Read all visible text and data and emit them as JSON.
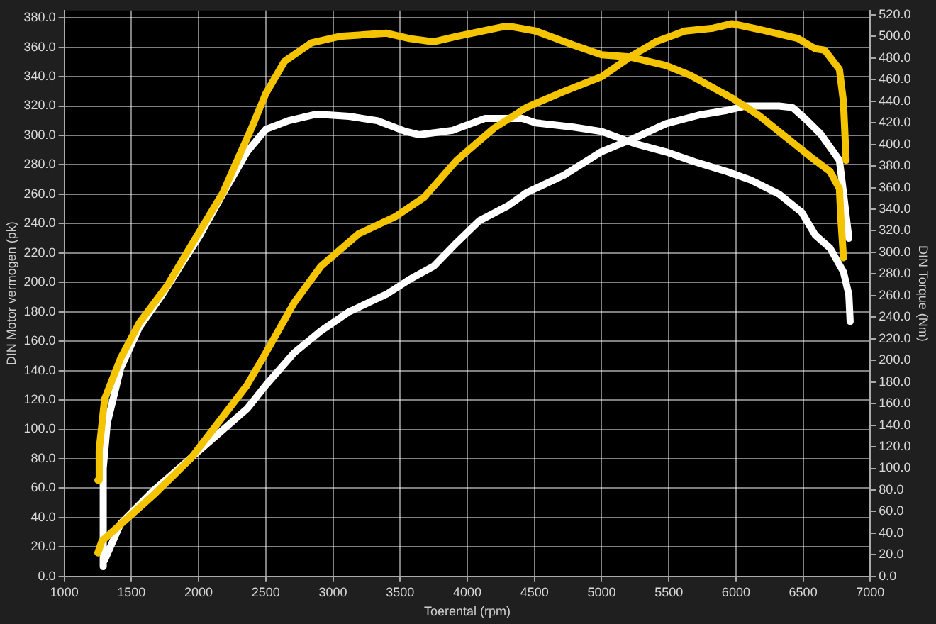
{
  "chart_data": {
    "type": "line",
    "xlabel": "Toerental (rpm)",
    "ylabel": "DIN Motor vermogen (pk)",
    "y2label": "DIN Torque (Nm)",
    "xlim": [
      1000,
      7000
    ],
    "xticks": [
      1000,
      1500,
      2000,
      2500,
      3000,
      3500,
      4000,
      4500,
      5000,
      5500,
      6000,
      6500,
      7000
    ],
    "ylim": [
      0,
      385
    ],
    "yticks": [
      {
        "value": 0,
        "label": "0.0"
      },
      {
        "value": 20,
        "label": "20.0"
      },
      {
        "value": 40,
        "label": "40.0"
      },
      {
        "value": 60,
        "label": "60.0"
      },
      {
        "value": 80,
        "label": "80.0"
      },
      {
        "value": 100,
        "label": "100.0"
      },
      {
        "value": 120,
        "label": "120.0"
      },
      {
        "value": 140,
        "label": "140.0"
      },
      {
        "value": 160,
        "label": "160.0"
      },
      {
        "value": 180,
        "label": "180.0"
      },
      {
        "value": 200,
        "label": "200.0"
      },
      {
        "value": 220,
        "label": "220.0"
      },
      {
        "value": 240,
        "label": "240.0"
      },
      {
        "value": 260,
        "label": "260.0"
      },
      {
        "value": 280,
        "label": "280.0"
      },
      {
        "value": 300,
        "label": "300.0"
      },
      {
        "value": 320,
        "label": "320.0"
      },
      {
        "value": 340,
        "label": "340.0"
      },
      {
        "value": 360,
        "label": "360.0"
      },
      {
        "value": 380,
        "label": "380.0"
      }
    ],
    "y2lim": [
      0,
      524
    ],
    "y2ticks": [
      {
        "value": 0,
        "label": "0.0"
      },
      {
        "value": 20,
        "label": "20.0"
      },
      {
        "value": 40,
        "label": "40.0"
      },
      {
        "value": 60,
        "label": "60.0"
      },
      {
        "value": 80,
        "label": "80.0"
      },
      {
        "value": 100,
        "label": "100.0"
      },
      {
        "value": 120,
        "label": "120.0"
      },
      {
        "value": 140,
        "label": "140.0"
      },
      {
        "value": 160,
        "label": "160.0"
      },
      {
        "value": 180,
        "label": "180.0"
      },
      {
        "value": 200,
        "label": "200.0"
      },
      {
        "value": 220,
        "label": "220.0"
      },
      {
        "value": 240,
        "label": "240.0"
      },
      {
        "value": 260,
        "label": "260.0"
      },
      {
        "value": 280,
        "label": "280.0"
      },
      {
        "value": 300,
        "label": "300.0"
      },
      {
        "value": 320,
        "label": "320.0"
      },
      {
        "value": 340,
        "label": "340.0"
      },
      {
        "value": 360,
        "label": "360.0"
      },
      {
        "value": 380,
        "label": "380.0"
      },
      {
        "value": 400,
        "label": "400.0"
      },
      {
        "value": 420,
        "label": "420.0"
      },
      {
        "value": 440,
        "label": "440.0"
      },
      {
        "value": 460,
        "label": "460.0"
      },
      {
        "value": 480,
        "label": "480.0"
      },
      {
        "value": 500,
        "label": "500.0"
      },
      {
        "value": 520,
        "label": "520.0"
      }
    ],
    "grid": true,
    "marker": "none",
    "line_style": "solid",
    "series": [
      {
        "color": "#f5c400",
        "axis": "y2",
        "x": [
          1250,
          1260,
          1300,
          1420,
          1560,
          1770,
          2010,
          2180,
          2390,
          2500,
          2640,
          2840,
          3050,
          3400,
          3570,
          3750,
          3920,
          4270,
          4330,
          4510,
          4790,
          5000,
          5210,
          5480,
          5660,
          5970,
          6180,
          6390,
          6560,
          6700,
          6770,
          6780,
          6800
        ],
        "values": [
          89,
          117,
          164,
          202,
          235,
          270,
          320,
          355,
          414,
          447,
          477,
          494,
          500,
          503,
          498,
          495,
          500,
          509,
          509,
          505,
          492,
          483,
          481,
          473,
          464,
          443,
          426,
          405,
          388,
          375,
          359,
          333,
          295
        ]
      },
      {
        "color": "#f5c400",
        "x": [
          1250,
          1280,
          1390,
          1660,
          1940,
          2150,
          2360,
          2500,
          2710,
          2910,
          3190,
          3470,
          3680,
          3920,
          4200,
          4440,
          4720,
          5000,
          5240,
          5410,
          5620,
          5830,
          5970,
          6180,
          6460,
          6590,
          6660,
          6770,
          6800,
          6820
        ],
        "values": [
          16,
          24,
          33,
          55,
          80,
          105,
          130,
          152,
          186,
          211,
          233,
          245,
          258,
          283,
          305,
          319,
          330,
          340,
          355,
          364,
          371,
          373,
          376,
          372,
          366,
          359,
          358,
          345,
          323,
          283
        ]
      },
      {
        "color": "#ffffff",
        "axis": "y2",
        "x": [
          1290,
          1290,
          1320,
          1420,
          1560,
          1730,
          2010,
          2180,
          2360,
          2500,
          2670,
          2880,
          3120,
          3330,
          3540,
          3640,
          3890,
          4130,
          4410,
          4510,
          4790,
          5000,
          5240,
          5480,
          5690,
          5930,
          6110,
          6320,
          6490,
          6590,
          6700,
          6800,
          6840,
          6850
        ],
        "values": [
          9,
          100,
          142,
          193,
          231,
          261,
          316,
          354,
          393,
          414,
          422,
          428,
          426,
          422,
          412,
          409,
          413,
          424,
          424,
          420,
          416,
          412,
          401,
          393,
          384,
          375,
          367,
          354,
          337,
          316,
          304,
          282,
          261,
          236
        ]
      },
      {
        "color": "#ffffff",
        "x": [
          1300,
          1420,
          1660,
          2010,
          2360,
          2500,
          2710,
          2910,
          3120,
          3400,
          3570,
          3750,
          3920,
          4090,
          4300,
          4440,
          4720,
          5000,
          5240,
          5480,
          5730,
          5930,
          6070,
          6320,
          6420,
          6520,
          6630,
          6770,
          6800,
          6840
        ],
        "values": [
          11,
          36,
          58,
          86,
          114,
          130,
          152,
          167,
          180,
          192,
          202,
          211,
          227,
          242,
          252,
          261,
          273,
          289,
          298,
          308,
          314,
          317,
          320,
          320,
          319,
          311,
          301,
          283,
          261,
          230
        ]
      }
    ]
  }
}
